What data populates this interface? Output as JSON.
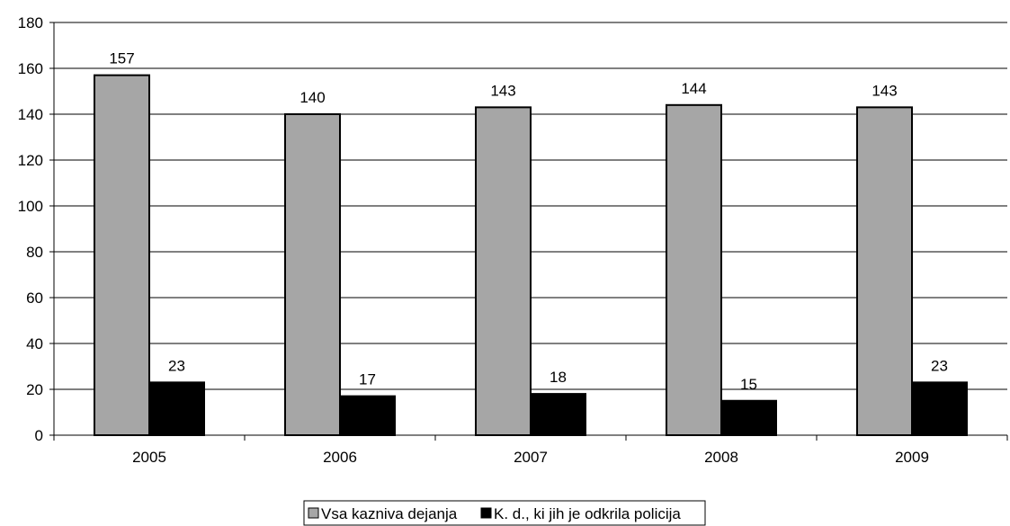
{
  "chart_data": {
    "type": "bar",
    "categories": [
      "2005",
      "2006",
      "2007",
      "2008",
      "2009"
    ],
    "series": [
      {
        "name": "Vsa kazniva dejanja",
        "values": [
          157,
          140,
          143,
          144,
          143
        ],
        "color": "#a6a6a6"
      },
      {
        "name": "K. d., ki jih je odkrila policija",
        "values": [
          23,
          17,
          18,
          15,
          23
        ],
        "color": "#000000"
      }
    ],
    "y_ticks": [
      "0",
      "20",
      "40",
      "60",
      "80",
      "100",
      "120",
      "140",
      "160",
      "180"
    ],
    "ylim": [
      0,
      180
    ],
    "grid": true,
    "legend_position": "bottom",
    "data_labels": true
  }
}
